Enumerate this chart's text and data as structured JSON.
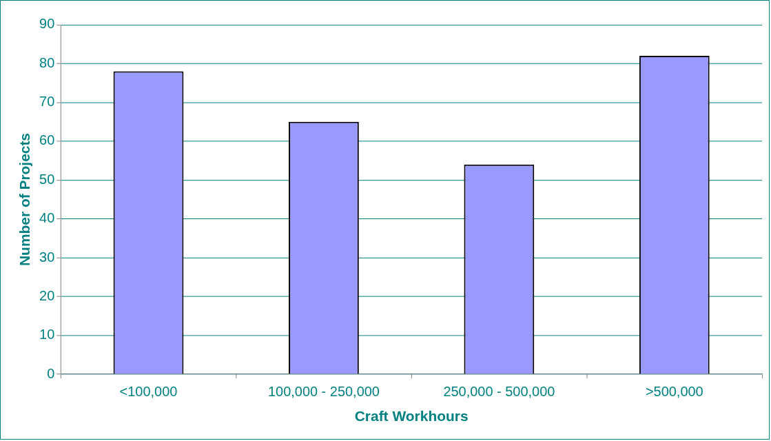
{
  "chart_data": {
    "type": "bar",
    "xlabel": "Craft Workhours",
    "ylabel": "Number of Projects",
    "categories": [
      "<100,000",
      "100,000 - 250,000",
      "250,000 - 500,000",
      ">500,000"
    ],
    "values": [
      78,
      65,
      54,
      82
    ],
    "color": "#9999ff",
    "ylim": [
      0,
      90
    ],
    "yticks": [
      0,
      10,
      20,
      30,
      40,
      50,
      60,
      70,
      80,
      90
    ],
    "grid": "y",
    "legend": false
  }
}
